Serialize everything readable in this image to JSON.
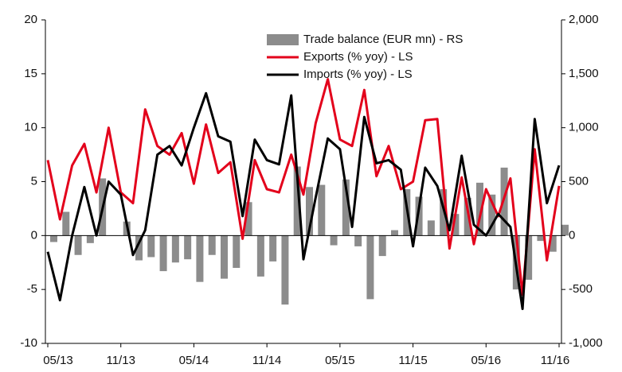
{
  "chart_data": {
    "type": "bar-line",
    "categories": [
      "05/13",
      null,
      null,
      null,
      null,
      null,
      "11/13",
      null,
      null,
      null,
      null,
      null,
      "05/14",
      null,
      null,
      null,
      null,
      null,
      "11/14",
      null,
      null,
      null,
      null,
      null,
      "05/15",
      null,
      null,
      null,
      null,
      null,
      "11/15",
      null,
      null,
      null,
      null,
      null,
      "05/16",
      null,
      null,
      null,
      null,
      null,
      "11/16"
    ],
    "series": [
      {
        "name": "Trade balance (EUR mn) - RS",
        "color": "#8c8c8c",
        "kind": "bar",
        "axis": "y2",
        "values": [
          -60,
          220,
          -180,
          -70,
          530,
          0,
          130,
          -230,
          -200,
          -330,
          -250,
          -220,
          -430,
          -180,
          -400,
          -300,
          310,
          -380,
          -240,
          -640,
          640,
          450,
          470,
          -90,
          520,
          -100,
          -590,
          -190,
          50,
          430,
          360,
          140,
          430,
          200,
          350,
          490,
          380,
          630,
          -500,
          -410,
          -50,
          -150,
          100
        ]
      },
      {
        "name": "Exports (% yoy) - LS",
        "color": "#e3001b",
        "kind": "line",
        "values": [
          7,
          1.5,
          6.5,
          8.5,
          4,
          10,
          4,
          3,
          11.7,
          8.3,
          7.5,
          9.5,
          4.8,
          10.3,
          5.8,
          6.8,
          -0.3,
          7,
          4.3,
          4,
          7.5,
          3.8,
          10.4,
          14.5,
          8.9,
          8.3,
          13.5,
          5.5,
          8.3,
          4.3,
          5,
          10.7,
          10.8,
          -1.2,
          5.4,
          -0.8,
          4.3,
          1.8,
          5.3,
          -5.5,
          8,
          -2.3,
          4.6
        ]
      },
      {
        "name": "Imports (% yoy) - LS",
        "color": "#000000",
        "kind": "line",
        "values": [
          -1.5,
          -6,
          0,
          4.5,
          0,
          5,
          3.8,
          -1.8,
          0.5,
          7.5,
          8.3,
          6.5,
          10,
          13.2,
          9.2,
          8.7,
          1.8,
          8.9,
          7,
          6.6,
          13,
          -2.2,
          3.5,
          9,
          8,
          0.8,
          11,
          6.7,
          7,
          6.1,
          -1,
          6.3,
          4.6,
          0.5,
          7.4,
          1,
          0,
          2,
          0.8,
          -6.8,
          10.8,
          3,
          6.5
        ]
      }
    ],
    "ylim": [
      -10,
      20
    ],
    "yticks": [
      -10,
      -5,
      0,
      5,
      10,
      15,
      20
    ],
    "y2lim": [
      -1000,
      2000
    ],
    "y2ticks": [
      {
        "value": -1000,
        "label": "-1,000"
      },
      {
        "value": -500,
        "label": "-500"
      },
      {
        "value": 0,
        "label": "0"
      },
      {
        "value": 500,
        "label": "500"
      },
      {
        "value": 1000,
        "label": "1,000"
      },
      {
        "value": 1500,
        "label": "1,500"
      },
      {
        "value": 2000,
        "label": "2,000"
      }
    ],
    "legend": "top"
  }
}
